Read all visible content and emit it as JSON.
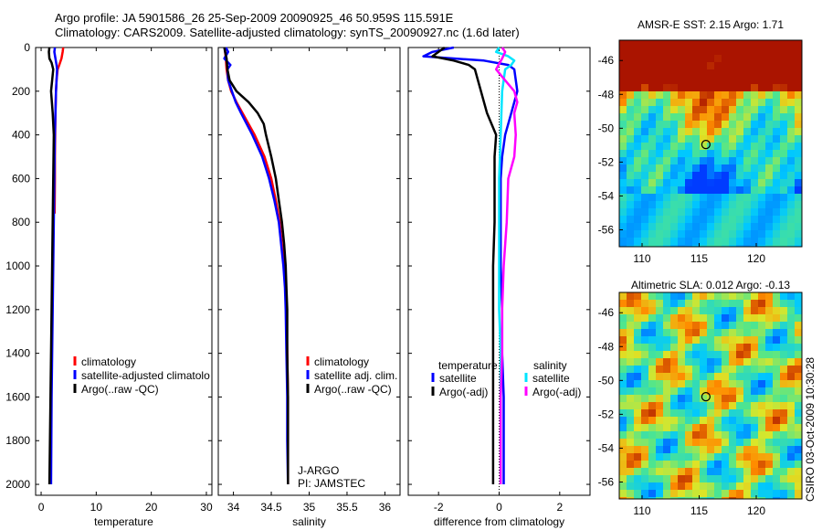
{
  "header": {
    "line1": "Argo profile: JA 5901586_26 25-Sep-2009 20090925_46 50.959S 115.591E",
    "line2": "Climatology: CARS2009. Satellite-adjusted climatology: synTS_20090927.nc (1.6d later)"
  },
  "side_label": "CSIRO 03-Oct-2009 10:30:28",
  "colors": {
    "climatology": "#ff0000",
    "satellite": "#0000ff",
    "argo": "#000000",
    "sal_satellite": "#00e5ff",
    "sal_argo": "#ff00ff"
  },
  "chart_data": [
    {
      "type": "line",
      "name": "temperature-panel",
      "xlabel": "temperature",
      "xlim": [
        -1,
        31
      ],
      "ylim": [
        2050,
        0
      ],
      "xticks": [
        0,
        10,
        20,
        30
      ],
      "yticks": [
        0,
        200,
        400,
        600,
        800,
        1000,
        1200,
        1400,
        1600,
        1800,
        2000
      ],
      "legend": [
        "climatology",
        "satellite-adjusted climatolo",
        "Argo(..raw -QC)"
      ],
      "series": [
        {
          "name": "climatology",
          "color": "#ff0000",
          "depth": [
            0,
            20,
            50,
            80,
            100,
            150,
            200,
            300,
            400,
            500,
            600,
            760
          ],
          "values": [
            4.0,
            3.9,
            3.7,
            3.3,
            3.0,
            2.8,
            2.7,
            2.6,
            2.55,
            2.5,
            2.5,
            2.45
          ]
        },
        {
          "name": "satellite-adjusted climatology",
          "color": "#0000ff",
          "depth": [
            0,
            20,
            50,
            80,
            100,
            150,
            200,
            300,
            400,
            600,
            800,
            1000,
            1200,
            1400,
            1600,
            1800,
            2000
          ],
          "values": [
            2.5,
            2.4,
            2.6,
            2.8,
            2.9,
            2.8,
            2.7,
            2.6,
            2.5,
            2.4,
            2.3,
            2.2,
            2.1,
            2.0,
            1.9,
            1.85,
            1.8
          ]
        },
        {
          "name": "Argo(..raw -QC)",
          "color": "#000000",
          "depth": [
            0,
            20,
            50,
            70,
            100,
            150,
            200,
            300,
            400,
            600,
            800,
            1000,
            1200,
            1400,
            1600,
            1800,
            2000
          ],
          "values": [
            1.5,
            1.4,
            1.5,
            1.9,
            2.2,
            2.0,
            1.8,
            2.1,
            2.3,
            2.2,
            2.1,
            2.0,
            1.9,
            1.8,
            1.7,
            1.6,
            1.5
          ]
        }
      ]
    },
    {
      "type": "line",
      "name": "salinity-panel",
      "xlabel": "salinity",
      "xlim": [
        33.8,
        36.2
      ],
      "ylim": [
        2050,
        0
      ],
      "xticks": [
        34,
        34.5,
        35,
        35.5,
        36
      ],
      "xticklabels": [
        "34",
        "34.5",
        "35",
        "35.5",
        "36"
      ],
      "legend": [
        "climatology",
        "satellite adj. clim.",
        "Argo(..raw -QC)"
      ],
      "annotation": [
        "J-ARGO",
        "PI: JAMSTEC"
      ],
      "series": [
        {
          "name": "climatology",
          "color": "#ff0000",
          "depth": [
            0,
            20,
            50,
            100,
            150,
            200,
            250,
            300,
            400,
            500,
            600,
            700,
            800,
            900,
            1000,
            1100,
            1200,
            1400,
            1600,
            1800,
            2000
          ],
          "values": [
            33.89,
            33.89,
            33.9,
            33.91,
            33.93,
            33.97,
            34.04,
            34.12,
            34.28,
            34.41,
            34.5,
            34.56,
            34.61,
            34.64,
            34.67,
            34.69,
            34.7,
            34.71,
            34.72,
            34.72,
            34.72
          ]
        },
        {
          "name": "satellite adj. clim.",
          "color": "#0000ff",
          "depth": [
            0,
            20,
            50,
            80,
            100,
            150,
            200,
            250,
            300,
            400,
            500,
            600,
            700,
            800,
            900,
            1000,
            1100,
            1200,
            1400,
            1600,
            1800,
            2000
          ],
          "values": [
            33.9,
            33.93,
            33.88,
            33.96,
            33.92,
            33.93,
            33.98,
            34.03,
            34.1,
            34.25,
            34.38,
            34.47,
            34.54,
            34.6,
            34.63,
            34.66,
            34.68,
            34.69,
            34.7,
            34.71,
            34.71,
            34.72
          ]
        },
        {
          "name": "Argo(..raw -QC)",
          "color": "#000000",
          "depth": [
            0,
            20,
            50,
            100,
            150,
            200,
            250,
            300,
            350,
            400,
            500,
            600,
            700,
            800,
            900,
            1000,
            1100,
            1200,
            1400,
            1600,
            1800,
            2000
          ],
          "values": [
            33.88,
            33.89,
            33.91,
            33.92,
            33.95,
            34.04,
            34.2,
            34.32,
            34.4,
            34.43,
            34.5,
            34.56,
            34.6,
            34.64,
            34.67,
            34.69,
            34.7,
            34.71,
            34.71,
            34.72,
            34.72,
            34.72
          ]
        }
      ]
    },
    {
      "type": "line",
      "name": "difference-panel",
      "xlabel": "difference from climatology",
      "xlim": [
        -3,
        3
      ],
      "ylim": [
        2050,
        0
      ],
      "xticks": [
        -2,
        0,
        2
      ],
      "legend": {
        "temperature_title": "temperature",
        "salinity_title": "salinity",
        "temperature": [
          "satellite",
          "Argo(-adj)"
        ],
        "salinity": [
          "satellite",
          "Argo(-adj)"
        ]
      },
      "series": [
        {
          "name": "temperature satellite",
          "color": "#0000ff",
          "depth": [
            0,
            20,
            40,
            60,
            80,
            100,
            200,
            300,
            400,
            500,
            600,
            800,
            1000,
            1200,
            1400,
            1600,
            1800,
            2000
          ],
          "values": [
            -1.5,
            -2.2,
            -2.5,
            -0.5,
            0.3,
            0.5,
            0.6,
            0.4,
            0.2,
            0.1,
            0.05,
            0.05,
            0.05,
            0.1,
            0.1,
            0.15,
            0.15,
            0.15
          ]
        },
        {
          "name": "temperature Argo(-adj)",
          "color": "#000000",
          "depth": [
            0,
            20,
            40,
            60,
            80,
            100,
            150,
            200,
            300,
            400,
            500,
            600,
            800,
            1000,
            1200,
            1400,
            1600,
            1800,
            2000
          ],
          "values": [
            -1.8,
            -2.0,
            -2.2,
            -1.5,
            -1.0,
            -0.8,
            -0.7,
            -0.6,
            -0.4,
            -0.1,
            -0.15,
            -0.15,
            -0.15,
            -0.2,
            -0.2,
            -0.2,
            -0.2,
            -0.2,
            -0.2
          ]
        },
        {
          "name": "salinity satellite",
          "color": "#00e5ff",
          "depth": [
            0,
            20,
            40,
            60,
            80,
            100,
            200,
            400,
            600,
            800,
            1000,
            1200,
            1400,
            1600,
            1800,
            2000
          ],
          "values": [
            0.0,
            -0.1,
            0.3,
            0.5,
            0.4,
            0.2,
            0.1,
            0.05,
            0.0,
            0.0,
            0.0,
            0.0,
            0.05,
            0.05,
            0.05,
            0.05
          ]
        },
        {
          "name": "salinity Argo(-adj)",
          "color": "#ff00ff",
          "depth": [
            0,
            20,
            50,
            100,
            150,
            200,
            250,
            300,
            400,
            500,
            600,
            800,
            1000,
            1200,
            1400,
            1600,
            1800,
            2000
          ],
          "values": [
            0.1,
            0.2,
            0.1,
            -0.1,
            0.2,
            0.5,
            0.6,
            0.5,
            0.55,
            0.5,
            0.3,
            0.25,
            0.15,
            0.1,
            0.1,
            0.05,
            0.05,
            0.05
          ]
        }
      ]
    },
    {
      "type": "heatmap",
      "name": "sst-map",
      "title": "AMSR-E SST: 2.15 Argo: 1.71",
      "xlim": [
        108,
        124
      ],
      "ylim": [
        -57,
        -44.8
      ],
      "xticks": [
        110,
        115,
        120
      ],
      "yticks": [
        -46,
        -48,
        -50,
        -52,
        -54,
        -56
      ],
      "marker": {
        "lon": 115.591,
        "lat": -50.959
      }
    },
    {
      "type": "heatmap",
      "name": "sla-map",
      "title": "Altimetric SLA: 0.012 Argo: -0.13",
      "xlim": [
        108,
        124
      ],
      "ylim": [
        -57,
        -44.8
      ],
      "xticks": [
        110,
        115,
        120
      ],
      "yticks": [
        -46,
        -48,
        -50,
        -52,
        -54,
        -56
      ],
      "marker": {
        "lon": 115.591,
        "lat": -50.959
      }
    }
  ]
}
